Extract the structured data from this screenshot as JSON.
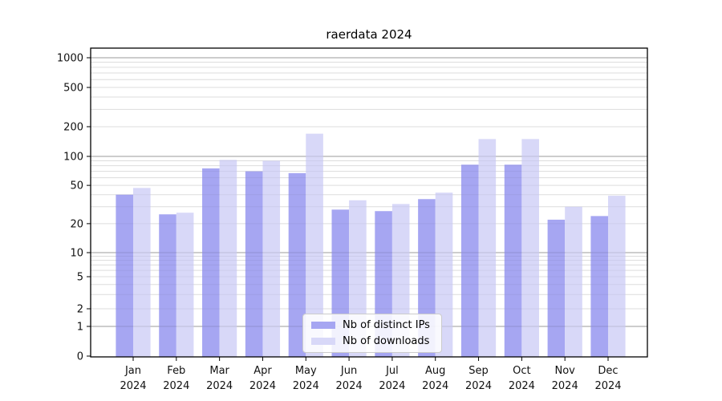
{
  "chart_data": {
    "type": "bar",
    "title": "raerdata 2024",
    "yscale": "symlog",
    "grid": "on",
    "legend_position": "lower center",
    "categories": [
      "Jan",
      "Feb",
      "Mar",
      "Apr",
      "May",
      "Jun",
      "Jul",
      "Aug",
      "Sep",
      "Oct",
      "Nov",
      "Dec"
    ],
    "x_year_line": "2024",
    "yticks": [
      0,
      1,
      2,
      5,
      10,
      20,
      50,
      100,
      200,
      500,
      1000
    ],
    "ylim": [
      0,
      1250
    ],
    "series": [
      {
        "name": "Nb of distinct IPs",
        "color": "#a6a6f2",
        "values": [
          40,
          25,
          75,
          70,
          67,
          28,
          27,
          36,
          82,
          82,
          22,
          24
        ]
      },
      {
        "name": "Nb of downloads",
        "color": "#d8d8f8",
        "values": [
          47,
          26,
          92,
          90,
          170,
          35,
          32,
          42,
          150,
          150,
          30,
          39
        ]
      }
    ]
  }
}
